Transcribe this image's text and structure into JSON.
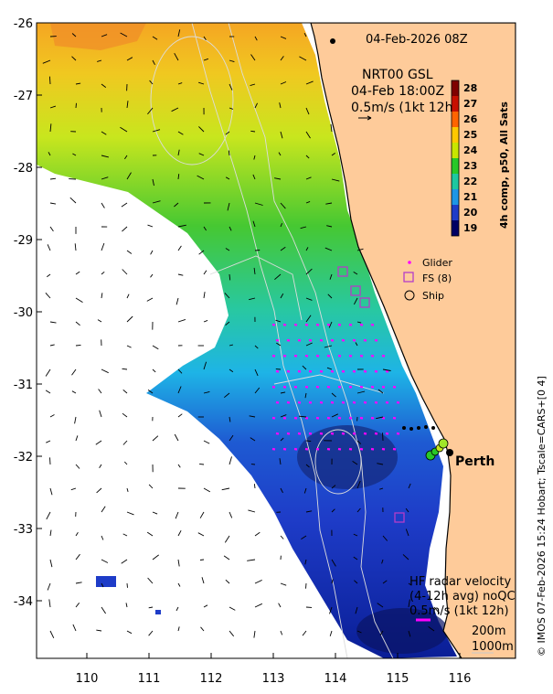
{
  "map": {
    "date_title": "04-Feb-2026 08Z",
    "product": "NRT00 GSL",
    "product_time": "04-Feb 18:00Z",
    "arrow_scale_label": "0.5m/s (1kt 12h)",
    "colorbar": {
      "label": "4h comp, p50, All Sats",
      "ticks": [
        "28",
        "27",
        "26",
        "25",
        "24",
        "23",
        "22",
        "21",
        "20",
        "19"
      ],
      "colors": [
        "#7f0000",
        "#c81000",
        "#ff6400",
        "#ffc800",
        "#c8e600",
        "#28c828",
        "#1ec8a0",
        "#1e96e6",
        "#1e3cc8",
        "#000064"
      ]
    },
    "legend": {
      "glider": "Glider",
      "fs": "FS (8)",
      "ship": "Ship"
    },
    "city": "Perth",
    "hf_radar": {
      "title": "HF radar velocity",
      "subtitle": "(4-12h avg) noQC",
      "scale": "0.5m/s (1kt 12h)"
    },
    "isobaths": [
      "200m",
      "1000m"
    ],
    "y_ticks": [
      "-26",
      "-27",
      "-28",
      "-29",
      "-30",
      "-31",
      "-32",
      "-33",
      "-34"
    ],
    "x_ticks": [
      "110",
      "111",
      "112",
      "113",
      "114",
      "115",
      "116"
    ],
    "side_credit": "© IMOS 07-Feb-2026 15:24 Hobart; Tscale=CARS+[0 4]",
    "colors": {
      "land": "#fecb9a",
      "coast": "#000000",
      "hf_arrow": "#ff00ff"
    }
  }
}
